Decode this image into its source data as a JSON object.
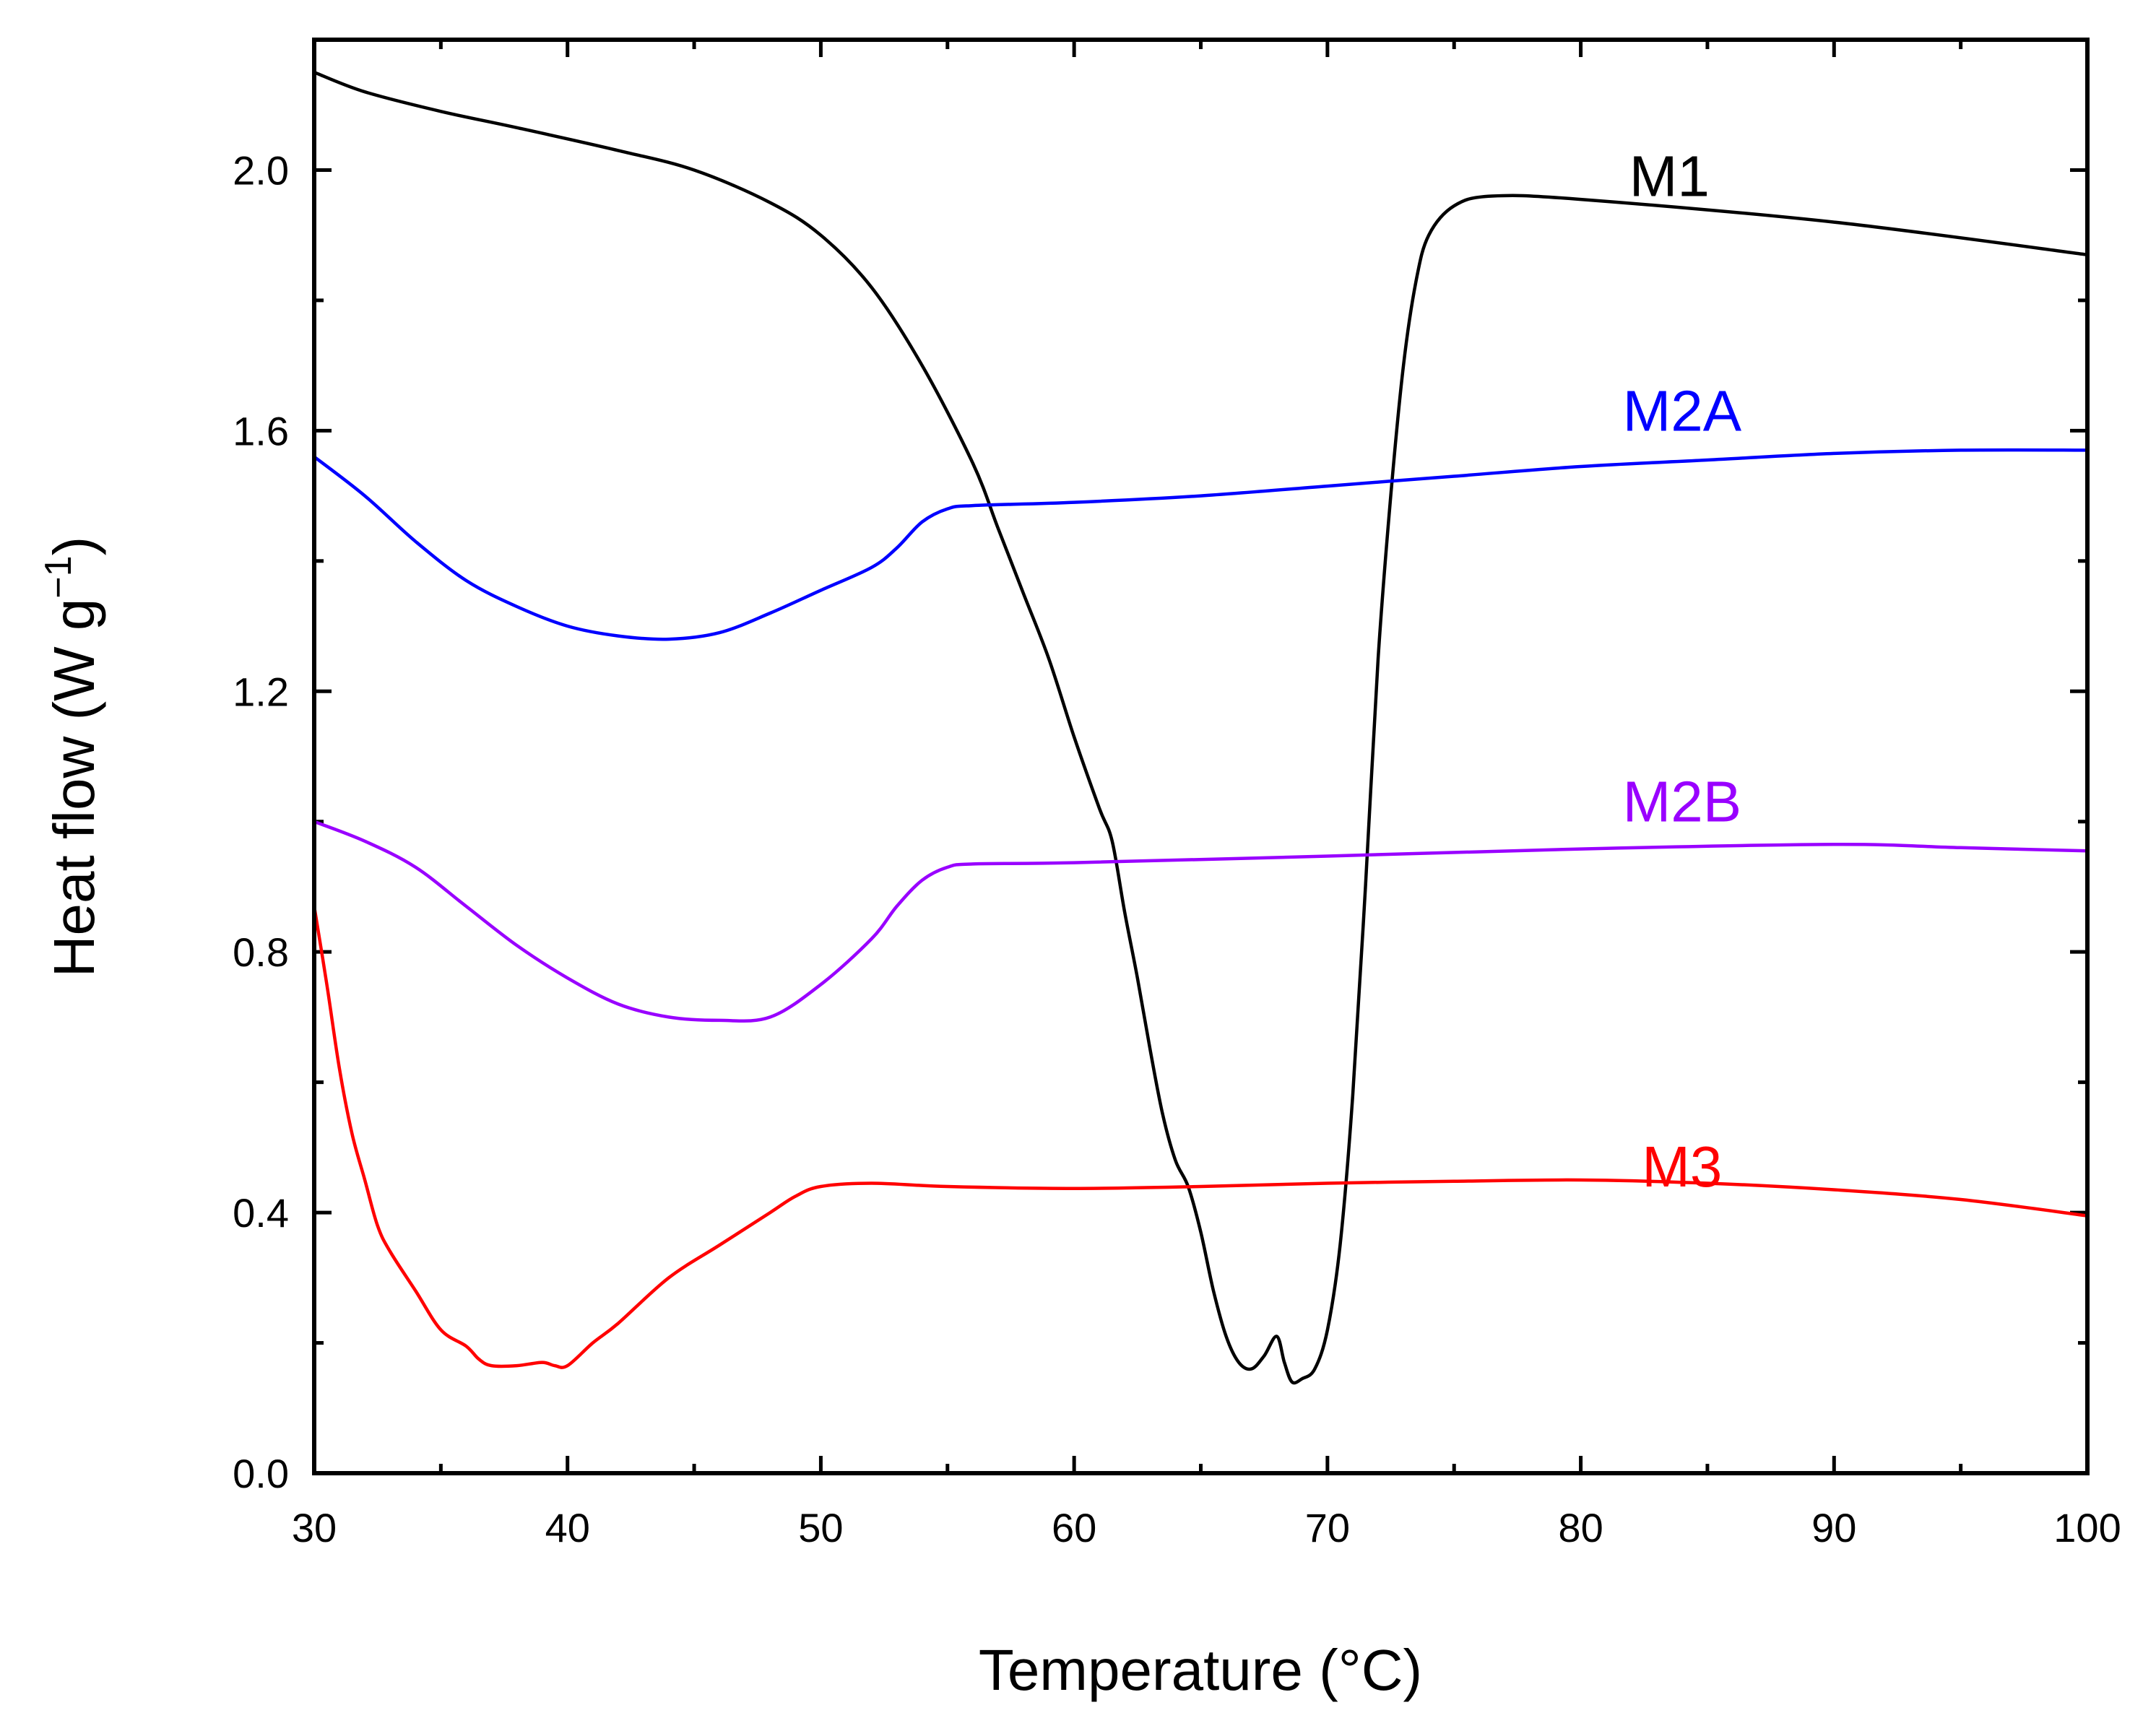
{
  "chart_data": {
    "type": "line",
    "xlabel": "Temperature (°C)",
    "ylabel_main": "Heat flow (W g",
    "ylabel_sup": "−1",
    "ylabel_close": ")",
    "xlim": [
      30,
      100
    ],
    "ylim": [
      0,
      2.2
    ],
    "x_ticks": [
      30,
      40,
      50,
      60,
      70,
      80,
      90,
      100
    ],
    "x_tick_labels": [
      "30",
      "40",
      "50",
      "60",
      "70",
      "80",
      "90",
      "100"
    ],
    "x_minor_step": 5,
    "y_ticks": [
      0,
      0.4,
      0.8,
      1.2,
      1.6,
      2.0
    ],
    "y_tick_labels": [
      "0.0",
      "0.4",
      "0.8",
      "1.2",
      "1.6",
      "2.0"
    ],
    "y_minor_step": 0.2,
    "series": [
      {
        "name": "M1",
        "color": "#000000",
        "label_pos": [
          83.5,
          1.96
        ],
        "points": [
          [
            30,
            2.15
          ],
          [
            32,
            2.12
          ],
          [
            35,
            2.09
          ],
          [
            38,
            2.065
          ],
          [
            42,
            2.03
          ],
          [
            45,
            2.0
          ],
          [
            48,
            1.95
          ],
          [
            50,
            1.9
          ],
          [
            52,
            1.82
          ],
          [
            54,
            1.7
          ],
          [
            56,
            1.55
          ],
          [
            57,
            1.45
          ],
          [
            58,
            1.35
          ],
          [
            59,
            1.25
          ],
          [
            60,
            1.13
          ],
          [
            61,
            1.02
          ],
          [
            61.5,
            0.97
          ],
          [
            62,
            0.86
          ],
          [
            62.5,
            0.76
          ],
          [
            63,
            0.65
          ],
          [
            63.5,
            0.55
          ],
          [
            64,
            0.48
          ],
          [
            64.5,
            0.44
          ],
          [
            65,
            0.37
          ],
          [
            65.5,
            0.28
          ],
          [
            66,
            0.21
          ],
          [
            66.5,
            0.17
          ],
          [
            67,
            0.16
          ],
          [
            67.5,
            0.18
          ],
          [
            68,
            0.21
          ],
          [
            68.3,
            0.17
          ],
          [
            68.6,
            0.14
          ],
          [
            69,
            0.145
          ],
          [
            69.5,
            0.16
          ],
          [
            70,
            0.22
          ],
          [
            70.5,
            0.35
          ],
          [
            71,
            0.58
          ],
          [
            71.5,
            0.9
          ],
          [
            72,
            1.25
          ],
          [
            72.5,
            1.5
          ],
          [
            73,
            1.7
          ],
          [
            73.5,
            1.83
          ],
          [
            74,
            1.9
          ],
          [
            75,
            1.945
          ],
          [
            76.5,
            1.96
          ],
          [
            80,
            1.955
          ],
          [
            90,
            1.92
          ],
          [
            100,
            1.87
          ]
        ]
      },
      {
        "name": "M2A",
        "color": "#0000ff",
        "label_pos": [
          84,
          1.6
        ],
        "points": [
          [
            30,
            1.56
          ],
          [
            32,
            1.5
          ],
          [
            34,
            1.43
          ],
          [
            36,
            1.37
          ],
          [
            38,
            1.33
          ],
          [
            40,
            1.3
          ],
          [
            42,
            1.285
          ],
          [
            44,
            1.28
          ],
          [
            46,
            1.29
          ],
          [
            48,
            1.32
          ],
          [
            50,
            1.355
          ],
          [
            52,
            1.39
          ],
          [
            53,
            1.42
          ],
          [
            54,
            1.46
          ],
          [
            55,
            1.48
          ],
          [
            56,
            1.485
          ],
          [
            60,
            1.49
          ],
          [
            65,
            1.5
          ],
          [
            70,
            1.515
          ],
          [
            75,
            1.53
          ],
          [
            80,
            1.545
          ],
          [
            85,
            1.555
          ],
          [
            90,
            1.565
          ],
          [
            95,
            1.57
          ],
          [
            100,
            1.57
          ]
        ]
      },
      {
        "name": "M2B",
        "color": "#9900ff",
        "label_pos": [
          84,
          1.0
        ],
        "points": [
          [
            30,
            1.0
          ],
          [
            32,
            0.97
          ],
          [
            34,
            0.93
          ],
          [
            36,
            0.87
          ],
          [
            38,
            0.81
          ],
          [
            40,
            0.76
          ],
          [
            42,
            0.72
          ],
          [
            44,
            0.7
          ],
          [
            46,
            0.695
          ],
          [
            48,
            0.7
          ],
          [
            50,
            0.75
          ],
          [
            52,
            0.82
          ],
          [
            53,
            0.87
          ],
          [
            54,
            0.91
          ],
          [
            55,
            0.93
          ],
          [
            56,
            0.935
          ],
          [
            60,
            0.937
          ],
          [
            70,
            0.947
          ],
          [
            80,
            0.958
          ],
          [
            90,
            0.965
          ],
          [
            95,
            0.96
          ],
          [
            100,
            0.955
          ]
        ]
      },
      {
        "name": "M3",
        "color": "#ff0000",
        "label_pos": [
          84,
          0.44
        ],
        "points": [
          [
            30,
            0.87
          ],
          [
            30.5,
            0.75
          ],
          [
            31,
            0.62
          ],
          [
            31.5,
            0.52
          ],
          [
            32,
            0.45
          ],
          [
            32.5,
            0.38
          ],
          [
            33,
            0.34
          ],
          [
            34,
            0.28
          ],
          [
            35,
            0.22
          ],
          [
            36,
            0.195
          ],
          [
            36.5,
            0.175
          ],
          [
            37,
            0.165
          ],
          [
            38,
            0.165
          ],
          [
            39,
            0.17
          ],
          [
            39.5,
            0.165
          ],
          [
            40,
            0.165
          ],
          [
            41,
            0.2
          ],
          [
            42,
            0.23
          ],
          [
            44,
            0.3
          ],
          [
            46,
            0.35
          ],
          [
            48,
            0.4
          ],
          [
            49,
            0.425
          ],
          [
            50,
            0.44
          ],
          [
            52,
            0.445
          ],
          [
            55,
            0.44
          ],
          [
            60,
            0.437
          ],
          [
            65,
            0.44
          ],
          [
            70,
            0.445
          ],
          [
            75,
            0.448
          ],
          [
            80,
            0.45
          ],
          [
            85,
            0.445
          ],
          [
            90,
            0.435
          ],
          [
            95,
            0.42
          ],
          [
            100,
            0.395
          ]
        ]
      }
    ]
  }
}
